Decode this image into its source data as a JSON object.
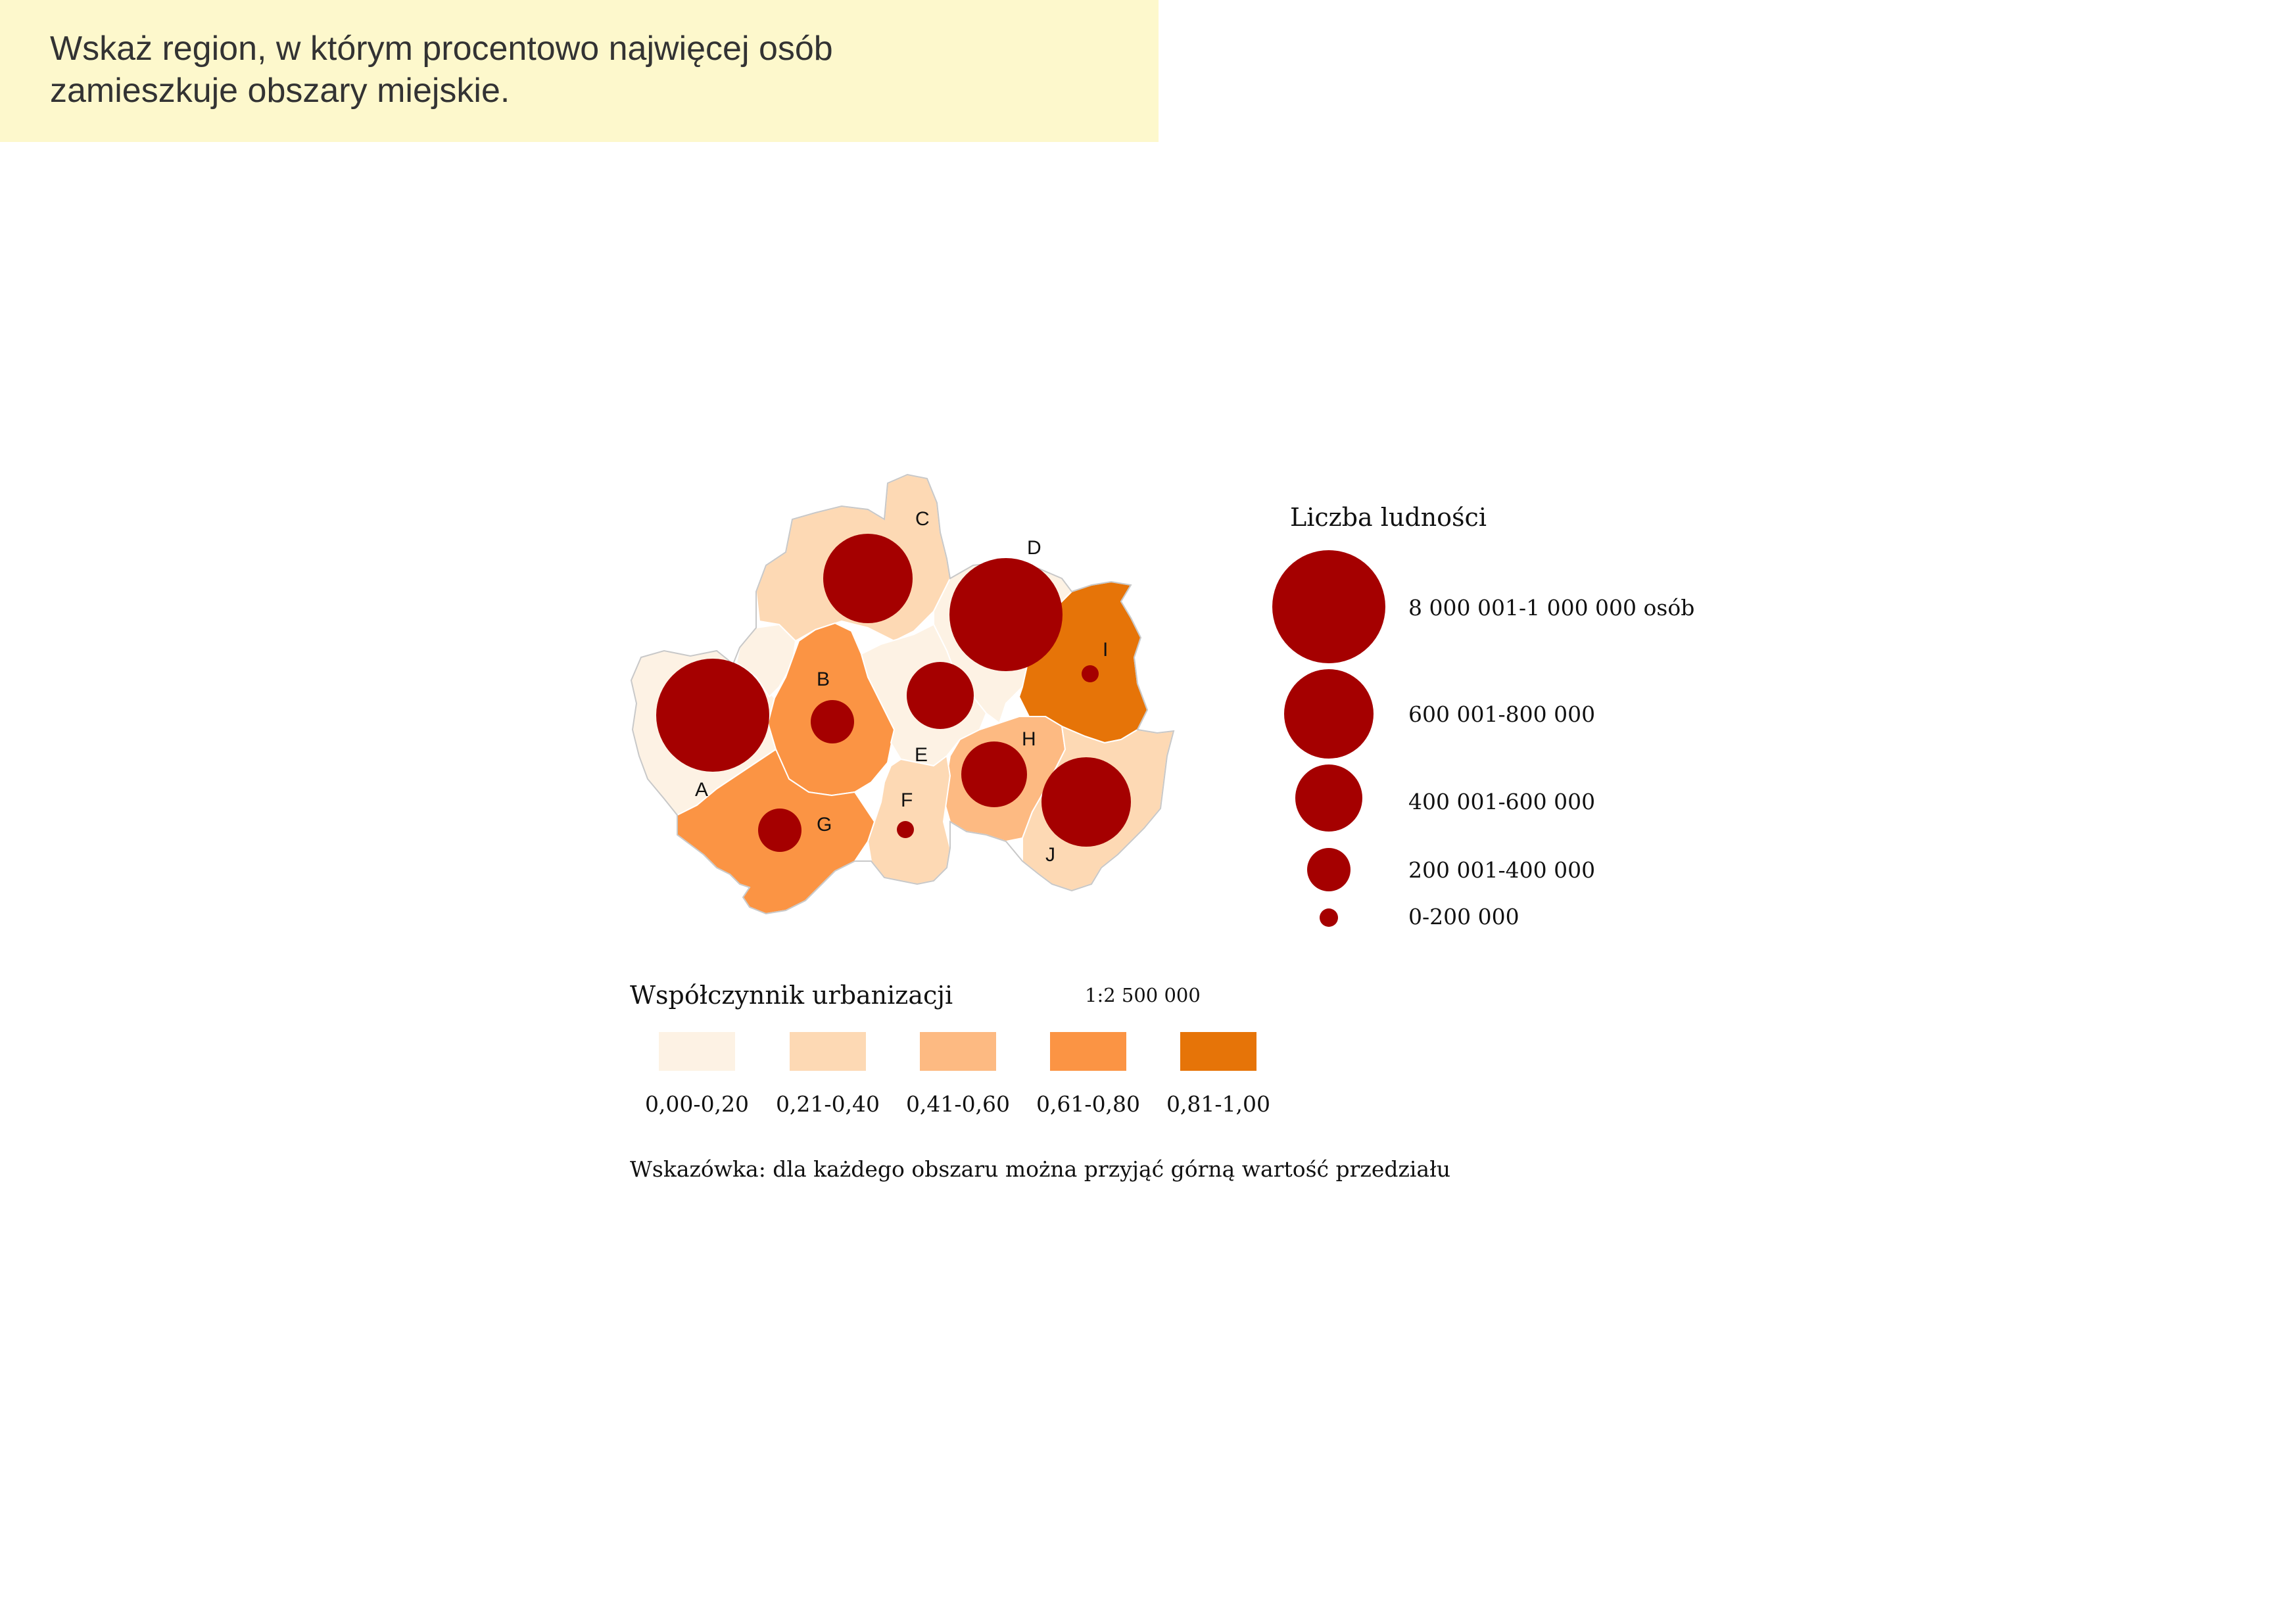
{
  "question": {
    "line1": "Wskaż region, w którym procentowo najwięcej osób",
    "line2": "zamieszkuje obszary miejskie."
  },
  "map": {
    "colors": {
      "class_0_20": "#fdf2e4",
      "class_21_40": "#fdd9b4",
      "class_41_60": "#fdba82",
      "class_61_80": "#fb9444",
      "class_81_100": "#e67408",
      "bubble": "#a50000",
      "border": "#c8c8c8"
    },
    "regions": [
      {
        "label": "A",
        "urbanization_class": "0,00-0,20",
        "population_class": "8 000 001-1 000 000 osób"
      },
      {
        "label": "B",
        "urbanization_class": "0,61-0,80",
        "population_class": "200 001-400 000"
      },
      {
        "label": "C",
        "urbanization_class": "0,21-0,40",
        "population_class": "600 001-800 000"
      },
      {
        "label": "D",
        "urbanization_class": "0,00-0,20",
        "population_class": "8 000 001-1 000 000 osób"
      },
      {
        "label": "E",
        "urbanization_class": "0,00-0,20",
        "population_class": "400 001-600 000"
      },
      {
        "label": "F",
        "urbanization_class": "0,21-0,40",
        "population_class": "0-200 000"
      },
      {
        "label": "G",
        "urbanization_class": "0,61-0,80",
        "population_class": "200 001-400 000"
      },
      {
        "label": "H",
        "urbanization_class": "0,41-0,60",
        "population_class": "400 001-600 000"
      },
      {
        "label": "I",
        "urbanization_class": "0,81-1,00",
        "population_class": "0-200 000"
      },
      {
        "label": "J",
        "urbanization_class": "0,21-0,40",
        "population_class": "600 001-800 000"
      }
    ]
  },
  "population_legend": {
    "title": "Liczba ludności",
    "items": [
      {
        "label": "8 000 001-1 000 000 osób"
      },
      {
        "label": "600 001-800 000"
      },
      {
        "label": "400 001-600 000"
      },
      {
        "label": "200 001-400 000"
      },
      {
        "label": "0-200 000"
      }
    ]
  },
  "urbanization_legend": {
    "title": "Współczynnik urbanizacji",
    "scale": "1:2 500 000",
    "items": [
      {
        "label": "0,00-0,20",
        "color": "#fdf2e4"
      },
      {
        "label": "0,21-0,40",
        "color": "#fdd9b4"
      },
      {
        "label": "0,41-0,60",
        "color": "#fdba82"
      },
      {
        "label": "0,61-0,80",
        "color": "#fb9444"
      },
      {
        "label": "0,81-1,00",
        "color": "#e67408"
      }
    ]
  },
  "hint": "Wskazówka: dla każdego obszaru można przyjąć górną wartość przedziału"
}
